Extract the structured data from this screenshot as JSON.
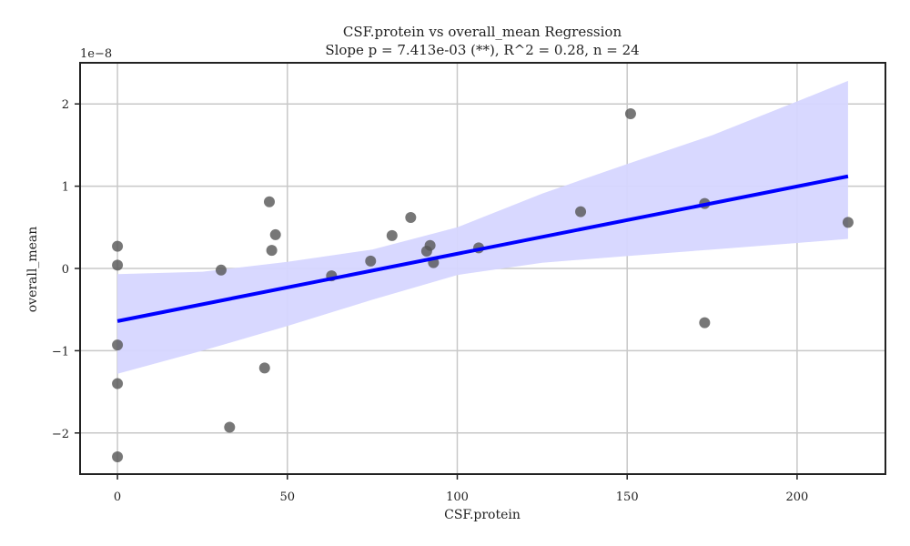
{
  "chart_data": {
    "type": "scatter",
    "title": "CSF.protein vs overall_mean Regression",
    "subtitle": "Slope p = 7.413e-03 (**), R^2 = 0.28, n = 24",
    "xlabel": "CSF.protein",
    "ylabel": "overall_mean",
    "y_offset_label": "1e−8",
    "xlim": [
      -11,
      226
    ],
    "ylim": [
      -2.5,
      2.5
    ],
    "y_scale_factor": 1e-08,
    "grid": true,
    "x_ticks": [
      0,
      50,
      100,
      150,
      200
    ],
    "x_tick_labels": [
      "0",
      "50",
      "100",
      "150",
      "200"
    ],
    "y_ticks": [
      -2,
      -1,
      0,
      1,
      2
    ],
    "y_tick_labels": [
      "−2",
      "−1",
      "0",
      "1",
      "2"
    ],
    "points": [
      {
        "x": 0,
        "y": 0.27
      },
      {
        "x": 0,
        "y": 0.04
      },
      {
        "x": 0,
        "y": -0.93
      },
      {
        "x": 0,
        "y": -1.4
      },
      {
        "x": 0,
        "y": -2.29
      },
      {
        "x": 30.5,
        "y": -0.02
      },
      {
        "x": 33,
        "y": -1.93
      },
      {
        "x": 43.3,
        "y": -1.21
      },
      {
        "x": 44.7,
        "y": 0.81
      },
      {
        "x": 45.4,
        "y": 0.22
      },
      {
        "x": 46.5,
        "y": 0.41
      },
      {
        "x": 63,
        "y": -0.09
      },
      {
        "x": 74.5,
        "y": 0.09
      },
      {
        "x": 80.8,
        "y": 0.4
      },
      {
        "x": 86.3,
        "y": 0.62
      },
      {
        "x": 91,
        "y": 0.21
      },
      {
        "x": 92,
        "y": 0.28
      },
      {
        "x": 93,
        "y": 0.07
      },
      {
        "x": 106.3,
        "y": 0.25
      },
      {
        "x": 136.3,
        "y": 0.69
      },
      {
        "x": 151,
        "y": 1.88
      },
      {
        "x": 172.8,
        "y": 0.79
      },
      {
        "x": 172.8,
        "y": -0.66
      },
      {
        "x": 215,
        "y": 0.56
      }
    ],
    "regression_line": {
      "x": [
        0,
        215
      ],
      "y": [
        -0.64,
        1.12
      ]
    },
    "confidence_band": {
      "x": [
        0,
        25,
        50,
        75,
        100,
        125,
        150,
        175,
        200,
        215
      ],
      "lower": [
        -1.28,
        -1.0,
        -0.7,
        -0.38,
        -0.08,
        0.07,
        0.15,
        0.23,
        0.31,
        0.36
      ],
      "upper": [
        -0.07,
        -0.04,
        0.08,
        0.23,
        0.5,
        0.91,
        1.27,
        1.62,
        2.03,
        2.28
      ]
    },
    "colors": {
      "points": "#555555",
      "line": "#0000ff",
      "band": "#d6d6ff",
      "grid": "#c8c8c8",
      "axes": "#222222"
    }
  }
}
